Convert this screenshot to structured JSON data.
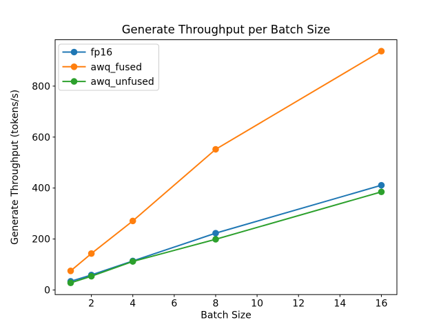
{
  "chart_data": {
    "type": "line",
    "title": "Generate Throughput per Batch Size",
    "xlabel": "Batch Size",
    "ylabel": "Generate Throughput (tokens/s)",
    "x": [
      1,
      2,
      4,
      8,
      16
    ],
    "series": [
      {
        "name": "fp16",
        "color": "#1f77b4",
        "values": [
          34,
          59,
          114,
          223,
          411
        ]
      },
      {
        "name": "awq_fused",
        "color": "#ff7f0e",
        "values": [
          75,
          143,
          271,
          552,
          937
        ]
      },
      {
        "name": "awq_unfused",
        "color": "#2ca02c",
        "values": [
          28,
          54,
          112,
          199,
          385
        ]
      }
    ],
    "xlim": [
      0.25,
      16.75
    ],
    "ylim": [
      -18,
      982
    ],
    "xticks": [
      2,
      4,
      6,
      8,
      10,
      12,
      14,
      16
    ],
    "yticks": [
      0,
      200,
      400,
      600,
      800
    ],
    "grid": false,
    "marker": "circle",
    "legend_position": "upper left",
    "colors": {
      "background": "#ffffff",
      "spine": "#000000",
      "text": "#000000",
      "legend_border": "#cccccc",
      "legend_background": "#ffffff"
    }
  }
}
